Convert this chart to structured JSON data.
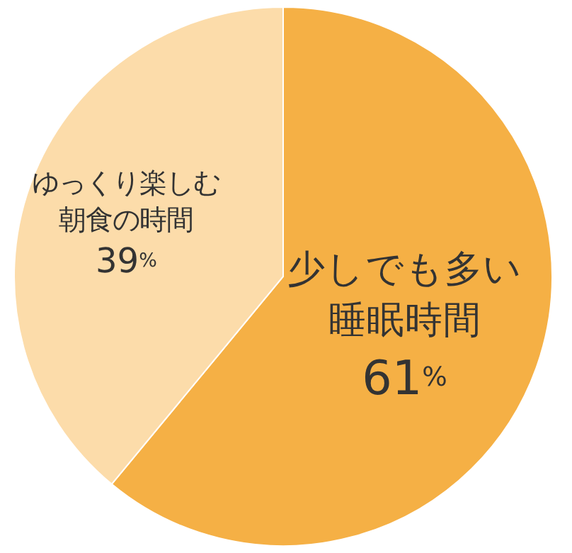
{
  "chart_data": {
    "type": "pie",
    "categories": [
      "少しでも多い睡眠時間",
      "ゆっくり楽しむ朝食の時間"
    ],
    "values": [
      61,
      39
    ],
    "colors": [
      "#f5b045",
      "#fcdcaa"
    ],
    "value_labels": [
      "61%",
      "39%"
    ]
  }
}
